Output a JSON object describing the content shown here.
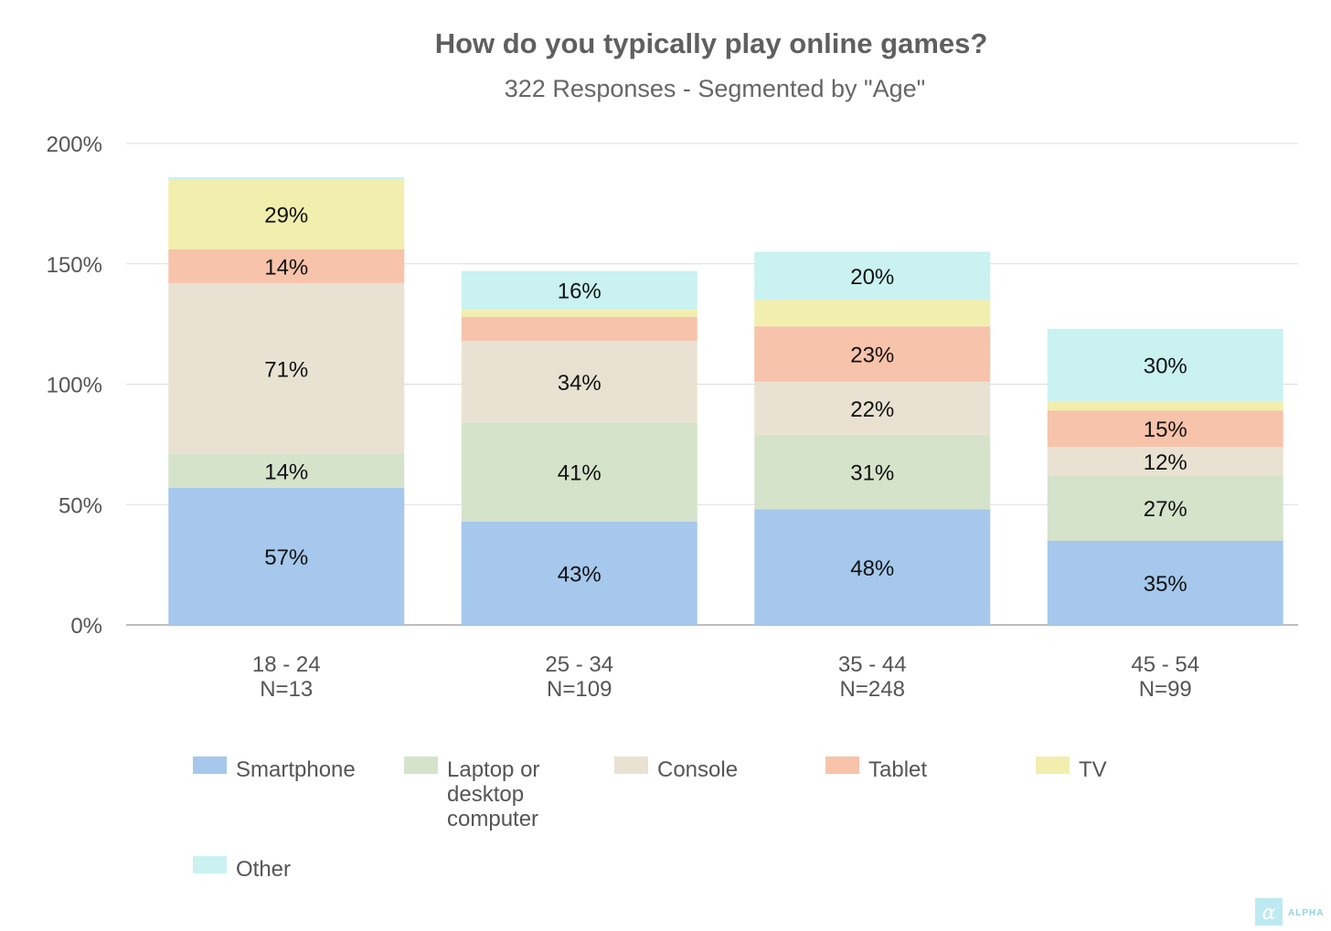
{
  "chart_data": {
    "type": "bar",
    "stacked": true,
    "title": "How do you typically play online games?",
    "subtitle": "322 Responses - Segmented by \"Age\"",
    "categories": [
      {
        "label": "18 - 24",
        "n": "N=13"
      },
      {
        "label": "25 - 34",
        "n": "N=109"
      },
      {
        "label": "35 - 44",
        "n": "N=248"
      },
      {
        "label": "45 - 54",
        "n": "N=99"
      }
    ],
    "series": [
      {
        "name": "Smartphone",
        "color": "#a5c8ec",
        "values": [
          57,
          43,
          48,
          35
        ],
        "labels": [
          "57%",
          "43%",
          "48%",
          "35%"
        ]
      },
      {
        "name": "Laptop or desktop computer",
        "color": "#d5e3cb",
        "values": [
          14,
          41,
          31,
          27
        ],
        "labels": [
          "14%",
          "41%",
          "31%",
          "27%"
        ]
      },
      {
        "name": "Console",
        "color": "#e9e2d2",
        "values": [
          71,
          34,
          22,
          12
        ],
        "labels": [
          "71%",
          "34%",
          "22%",
          "12%"
        ]
      },
      {
        "name": "Tablet",
        "color": "#f7c3aa",
        "values": [
          14,
          10,
          23,
          15
        ],
        "labels": [
          "14%",
          "",
          "23%",
          "15%"
        ]
      },
      {
        "name": "TV",
        "color": "#f2eeae",
        "values": [
          29,
          3,
          11,
          4
        ],
        "labels": [
          "29%",
          "",
          "",
          ""
        ]
      },
      {
        "name": "Other",
        "color": "#c9f2f1",
        "values": [
          1,
          16,
          20,
          30
        ],
        "labels": [
          "",
          "16%",
          "20%",
          "30%"
        ]
      }
    ],
    "yticks": [
      "0%",
      "50%",
      "100%",
      "150%",
      "200%"
    ],
    "ylim": [
      0,
      200
    ],
    "grid": true,
    "legend_position": "bottom"
  },
  "legend": {
    "items": [
      {
        "lines": [
          "Smartphone"
        ]
      },
      {
        "lines": [
          "Laptop or",
          "desktop",
          "computer"
        ]
      },
      {
        "lines": [
          "Console"
        ]
      },
      {
        "lines": [
          "Tablet"
        ]
      },
      {
        "lines": [
          "TV"
        ]
      },
      {
        "lines": [
          "Other"
        ]
      }
    ]
  },
  "brand": {
    "text": "ALPHA",
    "glyph": "α"
  }
}
